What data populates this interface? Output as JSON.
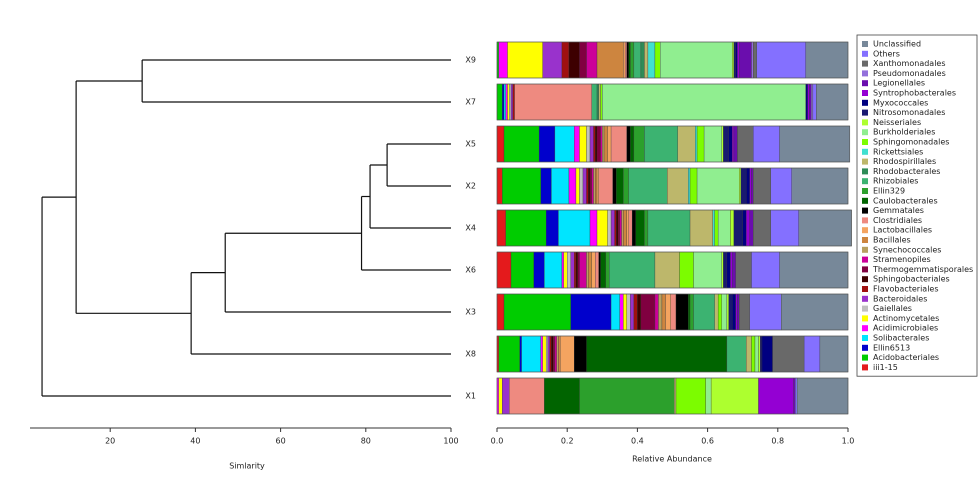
{
  "chart_data": [
    {
      "type": "dendrogram",
      "xlabel": "Simlarity",
      "xlim": [
        0,
        100
      ],
      "xticks": [
        20,
        40,
        60,
        80,
        100
      ],
      "tree": {
        "height": 4,
        "children": [
          {
            "height": 12,
            "children": [
              {
                "height": 27.5,
                "children": [
                  "X9",
                  "X7"
                ]
              },
              {
                "height": 39,
                "children": [
                  {
                    "height": 47,
                    "children": [
                      {
                        "height": 79,
                        "children": [
                          {
                            "height": 81,
                            "children": [
                              {
                                "height": 85,
                                "children": [
                                  "X5",
                                  "X2"
                                ]
                              },
                              "X4"
                            ]
                          },
                          "X6"
                        ]
                      },
                      "X3"
                    ]
                  },
                  "X8"
                ]
              }
            ]
          },
          "X1"
        ]
      }
    },
    {
      "type": "stacked_barh",
      "xlabel": "Relative Abundance",
      "xlim": [
        0,
        1
      ],
      "xticks": [
        {
          "value": 0,
          "label": "0.0"
        },
        {
          "value": 0.2,
          "label": "0.2"
        },
        {
          "value": 0.4,
          "label": "0.4"
        },
        {
          "value": 0.6,
          "label": "0.6"
        },
        {
          "value": 0.8,
          "label": "0.8"
        },
        {
          "value": 1,
          "label": "1.0"
        }
      ],
      "legend": "right",
      "categories": [
        "X9",
        "X7",
        "X5",
        "X2",
        "X4",
        "X6",
        "X3",
        "X8",
        "X1"
      ],
      "series": [
        {
          "name": "iii1-15",
          "color": "#e41a1c",
          "values": [
            0,
            0,
            0.02,
            0.015,
            0.025,
            0.04,
            0.02,
            0.005,
            0
          ]
        },
        {
          "name": "Acidobacteriales",
          "color": "#00cc00",
          "values": [
            0.005,
            0.015,
            0.1,
            0.11,
            0.115,
            0.065,
            0.19,
            0.06,
            0
          ]
        },
        {
          "name": "Ellin6513",
          "color": "#0000cc",
          "values": [
            0,
            0.005,
            0.045,
            0.03,
            0.035,
            0.03,
            0.115,
            0.005,
            0
          ]
        },
        {
          "name": "Solibacterales",
          "color": "#00e5ff",
          "values": [
            0,
            0.005,
            0.055,
            0.05,
            0.09,
            0.05,
            0.025,
            0.055,
            0
          ]
        },
        {
          "name": "Acidimicrobiales",
          "color": "#ff00ff",
          "values": [
            0.025,
            0.005,
            0.015,
            0.02,
            0.02,
            0.005,
            0.01,
            0.005,
            0.005
          ]
        },
        {
          "name": "Actinomycetales",
          "color": "#ffff00",
          "values": [
            0.1,
            0.005,
            0.02,
            0.01,
            0.03,
            0.01,
            0.01,
            0.01,
            0.01
          ]
        },
        {
          "name": "Gaiellales",
          "color": "#c0c0c0",
          "values": [
            0,
            0.005,
            0.01,
            0.01,
            0.01,
            0.01,
            0.01,
            0.005,
            0
          ]
        },
        {
          "name": "Bacteroidales",
          "color": "#9932cc",
          "values": [
            0.055,
            0.005,
            0.01,
            0.01,
            0.01,
            0.01,
            0.01,
            0.005,
            0.02
          ]
        },
        {
          "name": "Flavobacteriales",
          "color": "#a01010",
          "values": [
            0.02,
            0.005,
            0.005,
            0.005,
            0.005,
            0.005,
            0.01,
            0.005,
            0
          ]
        },
        {
          "name": "Sphingobacteriales",
          "color": "#3d0000",
          "values": [
            0.03,
            0,
            0.005,
            0.005,
            0.005,
            0.005,
            0.01,
            0.005,
            0
          ]
        },
        {
          "name": "Thermogemmatisporales",
          "color": "#800040",
          "values": [
            0.02,
            0,
            0.01,
            0.005,
            0.005,
            0.005,
            0.04,
            0.005,
            0
          ]
        },
        {
          "name": "Stramenopiles",
          "color": "#cc0099",
          "values": [
            0.03,
            0,
            0.005,
            0.005,
            0.005,
            0.02,
            0.01,
            0.005,
            0
          ]
        },
        {
          "name": "Synechococcales",
          "color": "#b8a060",
          "values": [
            0,
            0,
            0.005,
            0.005,
            0.005,
            0.005,
            0.01,
            0.005,
            0
          ]
        },
        {
          "name": "Bacillales",
          "color": "#cd853f",
          "values": [
            0.075,
            0,
            0.01,
            0.005,
            0.01,
            0.01,
            0.01,
            0.005,
            0
          ]
        },
        {
          "name": "Lactobacillales",
          "color": "#f4a460",
          "values": [
            0.005,
            0,
            0.01,
            0.005,
            0.005,
            0.01,
            0.015,
            0.04,
            0
          ]
        },
        {
          "name": "Clostridiales",
          "color": "#ee8a80",
          "values": [
            0.005,
            0.22,
            0.045,
            0.04,
            0.01,
            0.01,
            0.015,
            0,
            0.1
          ]
        },
        {
          "name": "Gemmatales",
          "color": "#000000",
          "values": [
            0.005,
            0,
            0.01,
            0.01,
            0.01,
            0.005,
            0.035,
            0.035,
            0
          ]
        },
        {
          "name": "Caulobacterales",
          "color": "#006400",
          "values": [
            0.005,
            0,
            0.01,
            0.02,
            0.025,
            0.015,
            0.005,
            0.4,
            0.1
          ]
        },
        {
          "name": "Ellin329",
          "color": "#2ca02c",
          "values": [
            0.01,
            0,
            0.03,
            0.015,
            0.01,
            0.01,
            0.01,
            0,
            0.27
          ]
        },
        {
          "name": "Rhizobiales",
          "color": "#3cb371",
          "values": [
            0.02,
            0.015,
            0.095,
            0.11,
            0.12,
            0.13,
            0.06,
            0.055,
            0
          ]
        },
        {
          "name": "Rhodobacterales",
          "color": "#2e8b57",
          "values": [
            0.01,
            0.005,
            0,
            0,
            0,
            0,
            0,
            0,
            0
          ]
        },
        {
          "name": "Rhodospirillales",
          "color": "#bdb76b",
          "values": [
            0.01,
            0.005,
            0.05,
            0.06,
            0.065,
            0.07,
            0.01,
            0.015,
            0.005
          ]
        },
        {
          "name": "Rickettsiales",
          "color": "#40e0d0",
          "values": [
            0.02,
            0,
            0.005,
            0.005,
            0.005,
            0,
            0,
            0,
            0
          ]
        },
        {
          "name": "Sphingomonadales",
          "color": "#7cfc00",
          "values": [
            0.015,
            0.005,
            0.02,
            0.02,
            0.01,
            0.04,
            0.01,
            0.01,
            0.085
          ]
        },
        {
          "name": "Burkholderiales",
          "color": "#90ee90",
          "values": [
            0.205,
            0.58,
            0.05,
            0.12,
            0.035,
            0.08,
            0.015,
            0.01,
            0.015
          ]
        },
        {
          "name": "Neisseriales",
          "color": "#adff2f",
          "values": [
            0.005,
            0,
            0.005,
            0.005,
            0.01,
            0.005,
            0.005,
            0.005,
            0.135
          ]
        },
        {
          "name": "Nitrosomonadales",
          "color": "#191970",
          "values": [
            0.005,
            0,
            0.015,
            0.015,
            0.025,
            0.01,
            0.01,
            0.005,
            0
          ]
        },
        {
          "name": "Myxococcales",
          "color": "#000080",
          "values": [
            0.005,
            0.005,
            0.01,
            0.01,
            0.01,
            0.01,
            0.01,
            0.03,
            0
          ]
        },
        {
          "name": "Syntrophobacterales",
          "color": "#9400d3",
          "values": [
            0.005,
            0.005,
            0.005,
            0.005,
            0.01,
            0.005,
            0.005,
            0,
            0.1
          ]
        },
        {
          "name": "Legionellales",
          "color": "#6a0dad",
          "values": [
            0.035,
            0.005,
            0.01,
            0.005,
            0.01,
            0.01,
            0.005,
            0,
            0.005
          ]
        },
        {
          "name": "Pseudomonadales",
          "color": "#9370db",
          "values": [
            0.005,
            0.005,
            0,
            0,
            0,
            0,
            0,
            0,
            0
          ]
        },
        {
          "name": "Xanthomonadales",
          "color": "#696969",
          "values": [
            0.01,
            0,
            0.045,
            0.05,
            0.05,
            0.045,
            0.03,
            0.09,
            0
          ]
        },
        {
          "name": "Others",
          "color": "#8470ff",
          "values": [
            0.14,
            0.01,
            0.075,
            0.06,
            0.08,
            0.08,
            0.09,
            0.045,
            0.005
          ]
        },
        {
          "name": "Unclassified",
          "color": "#778899",
          "values": [
            0.12,
            0.09,
            0.2,
            0.16,
            0.15,
            0.195,
            0.19,
            0.08,
            0.145
          ]
        }
      ]
    }
  ]
}
